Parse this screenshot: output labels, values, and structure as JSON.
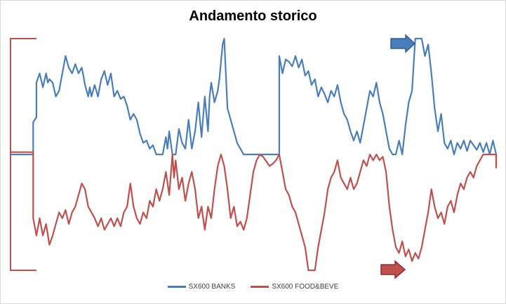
{
  "chart_data": {
    "type": "line",
    "title": "Andamento storico",
    "xlabel": "",
    "ylabel": "",
    "ylim": [
      -1,
      1
    ],
    "grid": false,
    "axes_visible": false,
    "legend_position": "bottom",
    "series": [
      {
        "name": "SX600 BANKS",
        "color": "#4a7ebb",
        "points": [
          [
            0,
            0
          ],
          [
            0.07,
            0
          ],
          [
            0.07,
            0.28
          ],
          [
            0.08,
            0.32
          ],
          [
            0.08,
            0.62
          ],
          [
            0.09,
            0.7
          ],
          [
            0.1,
            0.58
          ],
          [
            0.11,
            0.7
          ],
          [
            0.115,
            0.62
          ],
          [
            0.12,
            0.65
          ],
          [
            0.13,
            0.62
          ],
          [
            0.14,
            0.5
          ],
          [
            0.15,
            0.55
          ],
          [
            0.16,
            0.7
          ],
          [
            0.17,
            0.85
          ],
          [
            0.18,
            0.75
          ],
          [
            0.19,
            0.7
          ],
          [
            0.2,
            0.78
          ],
          [
            0.21,
            0.7
          ],
          [
            0.22,
            0.75
          ],
          [
            0.225,
            0.68
          ],
          [
            0.23,
            0.6
          ],
          [
            0.24,
            0.5
          ],
          [
            0.245,
            0.58
          ],
          [
            0.25,
            0.5
          ],
          [
            0.26,
            0.6
          ],
          [
            0.27,
            0.5
          ],
          [
            0.28,
            0.65
          ],
          [
            0.29,
            0.72
          ],
          [
            0.3,
            0.6
          ],
          [
            0.31,
            0.7
          ],
          [
            0.32,
            0.5
          ],
          [
            0.33,
            0.55
          ],
          [
            0.34,
            0.48
          ],
          [
            0.35,
            0.5
          ],
          [
            0.36,
            0.42
          ],
          [
            0.37,
            0.3
          ],
          [
            0.38,
            0.35
          ],
          [
            0.39,
            0.3
          ],
          [
            0.4,
            0.18
          ],
          [
            0.41,
            0.1
          ],
          [
            0.42,
            0.12
          ],
          [
            0.43,
            0.05
          ],
          [
            0.44,
            0.08
          ],
          [
            0.45,
            0
          ],
          [
            0.46,
            0
          ],
          [
            0.47,
            0
          ],
          [
            0.48,
            0.15
          ],
          [
            0.485,
            0.05
          ],
          [
            0.49,
            0.2
          ],
          [
            0.5,
            0
          ],
          [
            0.51,
            0
          ],
          [
            0.52,
            0.22
          ],
          [
            0.53,
            0.1
          ],
          [
            0.54,
            0.05
          ],
          [
            0.55,
            0.3
          ],
          [
            0.56,
            0.05
          ],
          [
            0.57,
            0.2
          ],
          [
            0.58,
            0.45
          ],
          [
            0.59,
            0.15
          ],
          [
            0.6,
            0.5
          ],
          [
            0.61,
            0.2
          ],
          [
            0.615,
            0.5
          ],
          [
            0.62,
            0.62
          ],
          [
            0.63,
            0.45
          ],
          [
            0.64,
            0.55
          ],
          [
            0.645,
            0.65
          ],
          [
            0.65,
            0.8
          ],
          [
            0.655,
            0.95
          ],
          [
            0.66,
            1
          ],
          [
            0.665,
            0.7
          ],
          [
            0.67,
            0.4
          ],
          [
            0.68,
            0.3
          ],
          [
            0.69,
            0.2
          ],
          [
            0.7,
            0.1
          ],
          [
            0.71,
            0.05
          ],
          [
            0.72,
            0
          ],
          [
            0.73,
            0
          ],
          [
            0.74,
            0
          ],
          [
            0.77,
            0
          ],
          [
            0.8,
            0
          ],
          [
            0.83,
            0
          ],
          [
            0.83,
            0.85
          ],
          [
            0.84,
            0.7
          ],
          [
            0.85,
            0.82
          ],
          [
            0.86,
            0.8
          ],
          [
            0.87,
            0.76
          ],
          [
            0.88,
            0.85
          ],
          [
            0.89,
            0.75
          ],
          [
            0.9,
            0.82
          ],
          [
            0.91,
            0.68
          ],
          [
            0.92,
            0.72
          ],
          [
            0.93,
            0.6
          ],
          [
            0.94,
            0.65
          ],
          [
            0.95,
            0.5
          ],
          [
            0.96,
            0.58
          ],
          [
            0.97,
            0.52
          ],
          [
            0.98,
            0.45
          ],
          [
            0.99,
            0.55
          ],
          [
            1.0,
            0.5
          ],
          [
            1.01,
            0.6
          ],
          [
            1.02,
            0.45
          ],
          [
            1.03,
            0.35
          ],
          [
            1.04,
            0.3
          ],
          [
            1.05,
            0.2
          ],
          [
            1.06,
            0.12
          ],
          [
            1.07,
            0.2
          ],
          [
            1.08,
            0.1
          ],
          [
            1.09,
            0.25
          ],
          [
            1.1,
            0.4
          ],
          [
            1.11,
            0.55
          ],
          [
            1.12,
            0.5
          ],
          [
            1.13,
            0.62
          ],
          [
            1.14,
            0.45
          ],
          [
            1.15,
            0.35
          ],
          [
            1.16,
            0.2
          ],
          [
            1.17,
            0.05
          ],
          [
            1.18,
            0
          ],
          [
            1.19,
            0
          ],
          [
            1.2,
            0.12
          ],
          [
            1.21,
            0.0
          ],
          [
            1.22,
            0.25
          ],
          [
            1.23,
            0.45
          ],
          [
            1.24,
            0.55
          ],
          [
            1.25,
            1
          ],
          [
            1.27,
            1
          ],
          [
            1.28,
            0.85
          ],
          [
            1.29,
            0.95
          ],
          [
            1.3,
            0.7
          ],
          [
            1.31,
            0.4
          ],
          [
            1.32,
            0.2
          ],
          [
            1.33,
            0.35
          ],
          [
            1.34,
            0.1
          ],
          [
            1.35,
            0.05
          ],
          [
            1.36,
            0.12
          ],
          [
            1.37,
            0
          ],
          [
            1.38,
            0.1
          ],
          [
            1.39,
            0.05
          ],
          [
            1.4,
            0.12
          ],
          [
            1.41,
            0.03
          ],
          [
            1.42,
            0.12
          ],
          [
            1.43,
            0.08
          ],
          [
            1.44,
            0.04
          ],
          [
            1.45,
            0.1
          ],
          [
            1.46,
            0.02
          ],
          [
            1.47,
            0.1
          ],
          [
            1.48,
            0
          ],
          [
            1.49,
            0.12
          ],
          [
            1.5,
            0
          ],
          [
            1.5,
            -0.1
          ]
        ]
      },
      {
        "name": "SX600 FOOD&BEVE",
        "color": "#c0504d",
        "points": [
          [
            0,
            0.02
          ],
          [
            0.07,
            0.02
          ],
          [
            0.07,
            -0.55
          ],
          [
            0.08,
            -0.7
          ],
          [
            0.09,
            -0.55
          ],
          [
            0.1,
            -0.7
          ],
          [
            0.11,
            -0.6
          ],
          [
            0.12,
            -0.78
          ],
          [
            0.13,
            -0.7
          ],
          [
            0.14,
            -0.6
          ],
          [
            0.15,
            -0.5
          ],
          [
            0.16,
            -0.55
          ],
          [
            0.17,
            -0.48
          ],
          [
            0.18,
            -0.6
          ],
          [
            0.19,
            -0.5
          ],
          [
            0.2,
            -0.45
          ],
          [
            0.21,
            -0.35
          ],
          [
            0.22,
            -0.25
          ],
          [
            0.23,
            -0.3
          ],
          [
            0.24,
            -0.45
          ],
          [
            0.25,
            -0.5
          ],
          [
            0.26,
            -0.55
          ],
          [
            0.27,
            -0.62
          ],
          [
            0.28,
            -0.55
          ],
          [
            0.29,
            -0.65
          ],
          [
            0.3,
            -0.6
          ],
          [
            0.31,
            -0.55
          ],
          [
            0.32,
            -0.62
          ],
          [
            0.33,
            -0.55
          ],
          [
            0.34,
            -0.62
          ],
          [
            0.35,
            -0.5
          ],
          [
            0.36,
            -0.45
          ],
          [
            0.37,
            -0.25
          ],
          [
            0.38,
            -0.45
          ],
          [
            0.39,
            -0.55
          ],
          [
            0.4,
            -0.6
          ],
          [
            0.41,
            -0.5
          ],
          [
            0.42,
            -0.55
          ],
          [
            0.43,
            -0.4
          ],
          [
            0.44,
            -0.45
          ],
          [
            0.45,
            -0.3
          ],
          [
            0.46,
            -0.4
          ],
          [
            0.47,
            -0.3
          ],
          [
            0.48,
            -0.15
          ],
          [
            0.49,
            -0.35
          ],
          [
            0.5,
            0
          ],
          [
            0.505,
            -0.2
          ],
          [
            0.51,
            -0.05
          ],
          [
            0.52,
            -0.3
          ],
          [
            0.53,
            -0.2
          ],
          [
            0.54,
            -0.4
          ],
          [
            0.55,
            -0.25
          ],
          [
            0.56,
            -0.15
          ],
          [
            0.57,
            -0.3
          ],
          [
            0.58,
            -0.55
          ],
          [
            0.59,
            -0.45
          ],
          [
            0.6,
            -0.65
          ],
          [
            0.61,
            -0.45
          ],
          [
            0.62,
            -0.55
          ],
          [
            0.63,
            -0.3
          ],
          [
            0.64,
            -0.1
          ],
          [
            0.65,
            0
          ],
          [
            0.66,
            -0.1
          ],
          [
            0.67,
            -0.3
          ],
          [
            0.68,
            -0.55
          ],
          [
            0.69,
            -0.45
          ],
          [
            0.7,
            -0.62
          ],
          [
            0.71,
            -0.58
          ],
          [
            0.72,
            -0.65
          ],
          [
            0.73,
            -0.55
          ],
          [
            0.74,
            -0.35
          ],
          [
            0.75,
            -0.15
          ],
          [
            0.76,
            -0.05
          ],
          [
            0.77,
            0
          ],
          [
            0.78,
            -0.02
          ],
          [
            0.8,
            -0.1
          ],
          [
            0.81,
            -0.08
          ],
          [
            0.82,
            -0.05
          ],
          [
            0.83,
            0
          ],
          [
            0.84,
            -0.15
          ],
          [
            0.85,
            -0.3
          ],
          [
            0.86,
            -0.35
          ],
          [
            0.87,
            -0.45
          ],
          [
            0.88,
            -0.5
          ],
          [
            0.89,
            -0.6
          ],
          [
            0.9,
            -0.7
          ],
          [
            0.91,
            -0.8
          ],
          [
            0.92,
            -1
          ],
          [
            0.94,
            -1
          ],
          [
            0.95,
            -0.8
          ],
          [
            0.96,
            -0.65
          ],
          [
            0.97,
            -0.5
          ],
          [
            0.98,
            -0.3
          ],
          [
            0.99,
            -0.2
          ],
          [
            1.0,
            -0.15
          ],
          [
            1.01,
            -0.05
          ],
          [
            1.02,
            -0.2
          ],
          [
            1.03,
            -0.25
          ],
          [
            1.04,
            -0.3
          ],
          [
            1.05,
            -0.2
          ],
          [
            1.06,
            -0.3
          ],
          [
            1.07,
            -0.25
          ],
          [
            1.08,
            -0.15
          ],
          [
            1.09,
            -0.05
          ],
          [
            1.1,
            -0.1
          ],
          [
            1.11,
            0
          ],
          [
            1.12,
            -0.05
          ],
          [
            1.13,
            0
          ],
          [
            1.14,
            -0.05
          ],
          [
            1.15,
            -0.02
          ],
          [
            1.16,
            -0.15
          ],
          [
            1.17,
            -0.45
          ],
          [
            1.18,
            -0.65
          ],
          [
            1.19,
            -0.8
          ],
          [
            1.2,
            -0.85
          ],
          [
            1.21,
            -0.75
          ],
          [
            1.22,
            -0.88
          ],
          [
            1.23,
            -0.82
          ],
          [
            1.24,
            -0.92
          ],
          [
            1.25,
            -0.85
          ],
          [
            1.26,
            -0.9
          ],
          [
            1.27,
            -0.8
          ],
          [
            1.28,
            -0.65
          ],
          [
            1.29,
            -0.5
          ],
          [
            1.3,
            -0.3
          ],
          [
            1.31,
            -0.45
          ],
          [
            1.32,
            -0.55
          ],
          [
            1.33,
            -0.5
          ],
          [
            1.34,
            -0.6
          ],
          [
            1.35,
            -0.45
          ],
          [
            1.36,
            -0.4
          ],
          [
            1.37,
            -0.5
          ],
          [
            1.38,
            -0.35
          ],
          [
            1.39,
            -0.25
          ],
          [
            1.4,
            -0.3
          ],
          [
            1.41,
            -0.2
          ],
          [
            1.42,
            -0.15
          ],
          [
            1.43,
            -0.2
          ],
          [
            1.44,
            -0.1
          ],
          [
            1.45,
            -0.05
          ],
          [
            1.46,
            0
          ],
          [
            1.5,
            0
          ],
          [
            1.5,
            -0.12
          ]
        ]
      }
    ],
    "x_range": [
      0,
      1.5
    ],
    "reference_bracket": {
      "color": "#c0504d",
      "top": 1,
      "bottom": -1,
      "right_x": 0.08
    }
  },
  "annotations": [
    {
      "name": "blue-arrow-icon",
      "color": "#4a7ebb",
      "direction": "right"
    },
    {
      "name": "red-arrow-icon",
      "color": "#c0504d",
      "direction": "right"
    }
  ]
}
